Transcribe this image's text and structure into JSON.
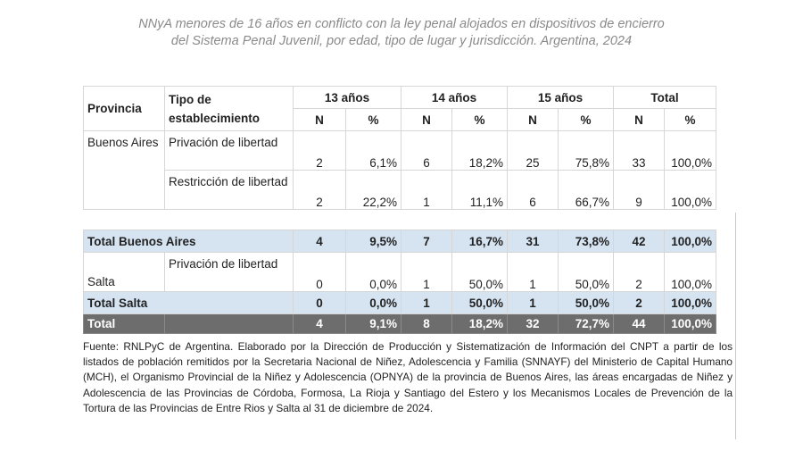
{
  "title": "NNyA menores de 16 años en conflicto con la ley penal alojados en dispositivos de encierro del Sistema Penal Juvenil, por edad, tipo de lugar y jurisdicción. Argentina, 2024",
  "table": {
    "headers": {
      "provincia": "Provincia",
      "tipo": "Tipo de establecimiento",
      "groups": [
        "13 años",
        "14 años",
        "15 años",
        "Total"
      ],
      "n": "N",
      "pct": "%"
    },
    "buenos_aires": {
      "province": "Buenos Aires",
      "rows": [
        {
          "tipo": "Privación de libertad",
          "cells": [
            "2",
            "6,1%",
            "6",
            "18,2%",
            "25",
            "75,8%",
            "33",
            "100,0%"
          ]
        },
        {
          "tipo": "Restricción de libertad",
          "cells": [
            "2",
            "22,2%",
            "1",
            "11,1%",
            "6",
            "66,7%",
            "9",
            "100,0%"
          ]
        }
      ],
      "total_label": "Total Buenos Aires",
      "total_cells": [
        "4",
        "9,5%",
        "7",
        "16,7%",
        "31",
        "73,8%",
        "42",
        "100,0%"
      ]
    },
    "salta": {
      "province": "Salta",
      "rows": [
        {
          "tipo": "Privación de libertad",
          "cells": [
            "0",
            "0,0%",
            "1",
            "50,0%",
            "1",
            "50,0%",
            "2",
            "100,0%"
          ]
        }
      ],
      "total_label": "Total Salta",
      "total_cells": [
        "0",
        "0,0%",
        "1",
        "50,0%",
        "1",
        "50,0%",
        "2",
        "100,0%"
      ]
    },
    "grand_total_label": "Total",
    "grand_total_cells": [
      "4",
      "9,1%",
      "8",
      "18,2%",
      "32",
      "72,7%",
      "44",
      "100,0%"
    ]
  },
  "source": "Fuente: RNLPyC de Argentina. Elaborado por la Dirección de Producción y Sistematización de Información del CNPT a partir de los listados de población remitidos por la Secretaria Nacional de Niñez, Adolescencia y Familia (SNNAYF) del Ministerio de Capital Humano (MCH), el Organismo Provincial de la Niñez y Adolescencia (OPNYA) de la provincia de Buenos Aires, las áreas encargadas de Niñez y Adolescencia de las Provincias de Córdoba, Formosa, La Rioja y Santiago del Estero y los Mecanismos Locales de Prevención de la Tortura de las Provincias de Entre Rios y Salta al 31 de diciembre de 2024."
}
